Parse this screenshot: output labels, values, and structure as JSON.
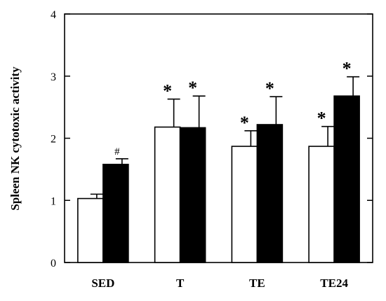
{
  "chart_data": {
    "type": "bar",
    "title": "",
    "xlabel": "",
    "ylabel": "Spleen NK cytotoxic activity",
    "ylim": [
      0,
      4
    ],
    "yticks": [
      0,
      1,
      2,
      3,
      4
    ],
    "grid": false,
    "legend": "none",
    "categories": [
      "SED",
      "T",
      "TE",
      "TE24"
    ],
    "series": [
      {
        "fill": "#ffffff",
        "values": [
          1.03,
          2.18,
          1.87,
          1.87
        ],
        "errors": [
          0.07,
          0.45,
          0.25,
          0.32
        ],
        "annotations": [
          "",
          "*",
          "*",
          "*"
        ]
      },
      {
        "fill": "#000000",
        "values": [
          1.58,
          2.17,
          2.22,
          2.68
        ],
        "errors": [
          0.09,
          0.51,
          0.45,
          0.31
        ],
        "annotations": [
          "#",
          "*",
          "*",
          "*"
        ]
      }
    ]
  }
}
